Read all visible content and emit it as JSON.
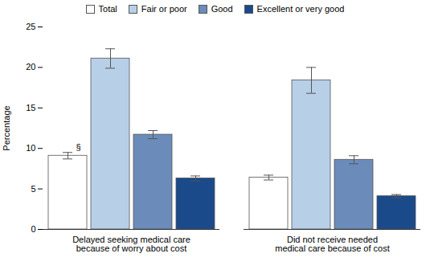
{
  "chart_data": {
    "type": "bar",
    "categories": [
      "Delayed seeking medical care\nbecause of worry about cost",
      "Did not receive needed\nmedical care because of cost"
    ],
    "series": [
      {
        "name": "Total",
        "color": "#ffffff",
        "values": [
          9.1,
          6.4
        ],
        "errors": [
          0.4,
          0.3
        ]
      },
      {
        "name": "Fair or poor",
        "color": "#b8cfe8",
        "values": [
          21.1,
          18.4
        ],
        "errors": [
          1.2,
          1.6
        ]
      },
      {
        "name": "Good",
        "color": "#6b8cba",
        "values": [
          11.7,
          8.6
        ],
        "errors": [
          0.5,
          0.5
        ]
      },
      {
        "name": "Excellent or very good",
        "color": "#1a4a8a",
        "values": [
          6.3,
          4.1
        ],
        "errors": [
          0.3,
          0.2
        ]
      }
    ],
    "ylabel": "Percentage",
    "ylim": [
      0,
      25
    ],
    "yticks": [
      0,
      5,
      10,
      15,
      20,
      25
    ],
    "grid": false,
    "legend": "top",
    "annotations": [
      {
        "text": "§",
        "category": "Delayed seeking medical care\nbecause of worry about cost",
        "series": "Total"
      }
    ]
  }
}
